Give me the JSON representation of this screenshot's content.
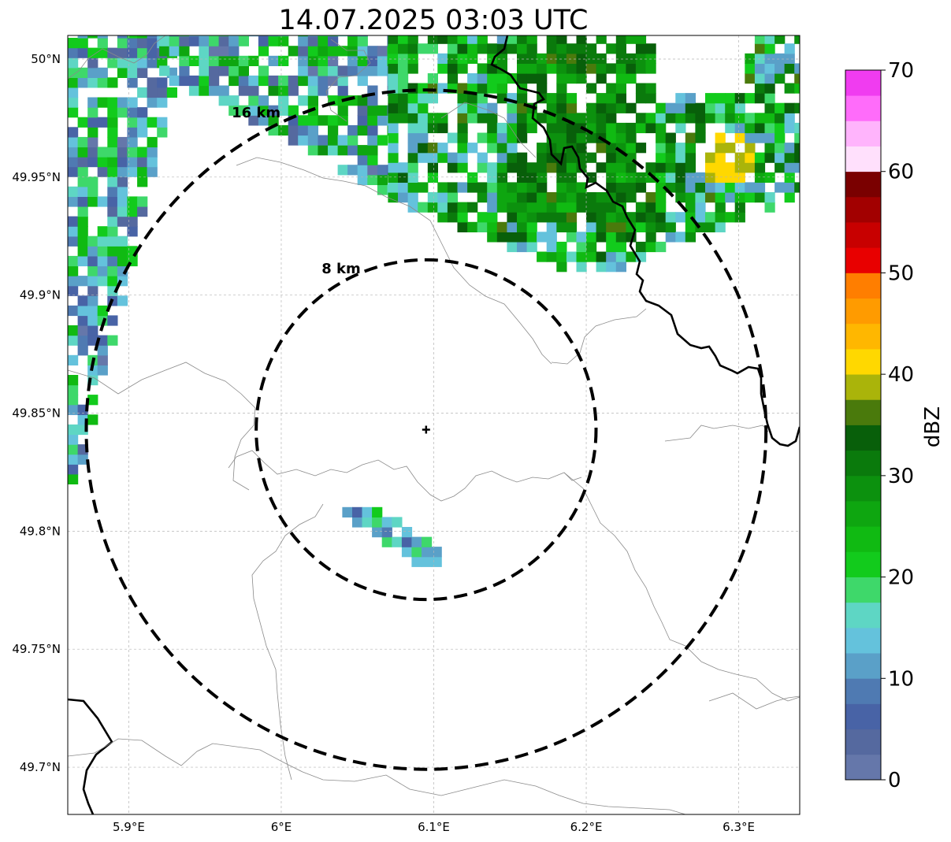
{
  "title": "14.07.2025 03:03 UTC",
  "map": {
    "lon_range": [
      5.86,
      6.34
    ],
    "lat_range": [
      49.68,
      50.01
    ],
    "x_ticks": [
      {
        "value": 5.9,
        "label": "5.9°E"
      },
      {
        "value": 6.0,
        "label": "6°E"
      },
      {
        "value": 6.1,
        "label": "6.1°E"
      },
      {
        "value": 6.2,
        "label": "6.2°E"
      },
      {
        "value": 6.3,
        "label": "6.3°E"
      }
    ],
    "y_ticks": [
      {
        "value": 50.0,
        "label": "50°N"
      },
      {
        "value": 49.95,
        "label": "49.95°N"
      },
      {
        "value": 49.9,
        "label": "49.9°N"
      },
      {
        "value": 49.85,
        "label": "49.85°N"
      },
      {
        "value": 49.8,
        "label": "49.8°N"
      },
      {
        "value": 49.75,
        "label": "49.75°N"
      },
      {
        "value": 49.7,
        "label": "49.7°N"
      }
    ],
    "grid": true,
    "center": {
      "lon": 6.095,
      "lat": 49.843
    },
    "rings": [
      {
        "radius_km": 8,
        "label": "8 km"
      },
      {
        "radius_km": 16,
        "label": "16 km"
      }
    ]
  },
  "colorbar": {
    "label": "dBZ",
    "min": 0,
    "max": 70,
    "ticks": [
      0,
      10,
      20,
      30,
      40,
      50,
      60,
      70
    ],
    "colors": [
      "#6577aa",
      "#55699f",
      "#4863a6",
      "#4f7ab2",
      "#5aa0c8",
      "#64c2dc",
      "#5ed6c4",
      "#3ed86a",
      "#12cb1c",
      "#10ba12",
      "#0ea610",
      "#0c910e",
      "#0a7a0c",
      "#085f0a",
      "#4a7a0c",
      "#aab40a",
      "#ffd800",
      "#ffb700",
      "#ff9b00",
      "#ff7e00",
      "#e80000",
      "#c80000",
      "#a20000",
      "#7a0000",
      "#ffe0fc",
      "#ffb4fc",
      "#ff6cfa",
      "#f03cf0"
    ]
  },
  "chart_data": {
    "type": "heatmap",
    "title": "14.07.2025 03:03 UTC",
    "colorbar_label": "dBZ",
    "zlim": [
      0,
      70
    ],
    "echo_regions": [
      {
        "lon_range": [
          5.86,
          5.93
        ],
        "lat_range": [
          49.82,
          50.01
        ],
        "dbz_range": [
          2,
          25
        ],
        "note": "western band"
      },
      {
        "lon_range": [
          5.92,
          6.07
        ],
        "lat_range": [
          49.93,
          50.01
        ],
        "dbz_range": [
          2,
          28
        ]
      },
      {
        "lon_range": [
          6.07,
          6.34
        ],
        "lat_range": [
          49.91,
          50.01
        ],
        "dbz_range": [
          10,
          36
        ],
        "max_dbz": 42
      },
      {
        "lon_range": [
          6.04,
          6.1
        ],
        "lat_range": [
          49.785,
          49.81
        ],
        "dbz_range": [
          5,
          21
        ]
      }
    ]
  }
}
